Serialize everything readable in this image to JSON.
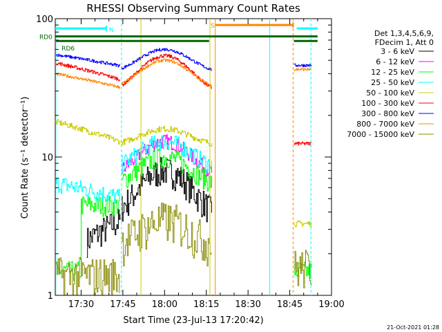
{
  "chart_data": {
    "type": "line",
    "title": "RHESSI Observing Summary Count Rates",
    "xlabel": "Start Time (23-Jul-13 17:20:42)",
    "ylabel": "Count Rate (s⁻¹ detector⁻¹)",
    "xlim_minutes_from_17_00": [
      20.7,
      120
    ],
    "ylim": [
      1,
      100
    ],
    "yscale": "log",
    "x_ticks": [
      {
        "label": "17:30",
        "min": 30
      },
      {
        "label": "17:45",
        "min": 45
      },
      {
        "label": "18:00",
        "min": 60
      },
      {
        "label": "18:15",
        "min": 75
      },
      {
        "label": "18:30",
        "min": 90
      },
      {
        "label": "18:45",
        "min": 105
      },
      {
        "label": "19:00",
        "min": 120
      }
    ],
    "y_ticks": [
      {
        "label": "1",
        "value": 1
      },
      {
        "label": "10",
        "value": 10
      },
      {
        "label": "100",
        "value": 100
      }
    ],
    "legend_header": [
      "Det 1,3,4,5,6,9,",
      "FDecim 1, Att 0"
    ],
    "legend_position": "right",
    "series": [
      {
        "name": "3 - 6 keV",
        "color": "#000000"
      },
      {
        "name": "6 - 12 keV",
        "color": "#ff00ff"
      },
      {
        "name": "12 - 25 keV",
        "color": "#00ff00"
      },
      {
        "name": "25 - 50 keV",
        "color": "#00ffff"
      },
      {
        "name": "50 - 100 keV",
        "color": "#cccc00"
      },
      {
        "name": "100 - 300 keV",
        "color": "#ff0000"
      },
      {
        "name": "300 - 800 keV",
        "color": "#0000ff"
      },
      {
        "name": "800 - 7000 keV",
        "color": "#ff8800"
      },
      {
        "name": "7000 - 15000 keV",
        "color": "#888800"
      }
    ],
    "annotations": [
      {
        "label": "RD0",
        "color": "#006600"
      },
      {
        "label": "RD6",
        "color": "#006600"
      },
      {
        "label": "N",
        "color": "#00ffff"
      },
      {
        "label": "S",
        "color": "#ff8800"
      }
    ],
    "timestamp": "21-Oct-2021 01:28"
  }
}
